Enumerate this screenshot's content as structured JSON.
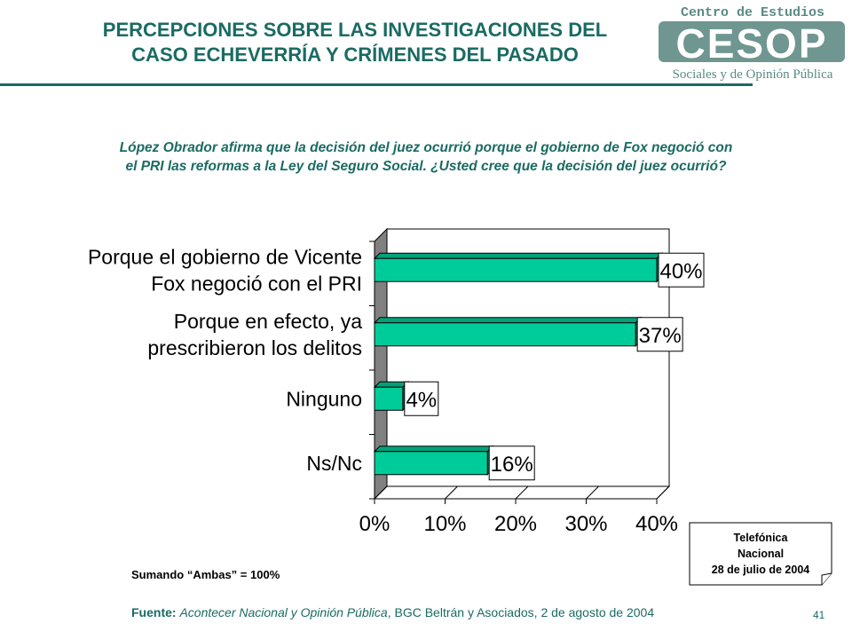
{
  "header": {
    "title_line1": "PERCEPCIONES SOBRE LAS INVESTIGACIONES DEL",
    "title_line2": "CASO ECHEVERRÍA Y CRÍMENES DEL PASADO"
  },
  "logo": {
    "top_text": "Centro de Estudios",
    "big_text": "CESOP",
    "bottom_text": "Sociales y de Opinión Pública"
  },
  "question": {
    "line1": "López Obrador afirma que la decisión del juez ocurrió porque el gobierno de Fox negoció con",
    "line2": "el PRI las reformas a la Ley del Seguro Social. ¿Usted cree que la decisión del juez ocurrió?"
  },
  "chart_data": {
    "type": "bar",
    "orientation": "horizontal",
    "categories": [
      [
        "Porque el gobierno de Vicente",
        "Fox negoció con el PRI"
      ],
      [
        "Porque en efecto, ya",
        "prescribieron los delitos"
      ],
      [
        "Ninguno"
      ],
      [
        "Ns/Nc"
      ]
    ],
    "values": [
      40,
      37,
      4,
      16
    ],
    "data_labels": [
      "40%",
      "37%",
      "4%",
      "16%"
    ],
    "xlim": [
      0,
      40
    ],
    "xticks": [
      "0%",
      "10%",
      "20%",
      "30%",
      "40%"
    ],
    "bar_color": "#00cc99",
    "wall_color": "#808080",
    "grid": false,
    "legend": "none"
  },
  "note": "Sumando “Ambas” = 100%",
  "info_box": {
    "line1": "Telefónica",
    "line2": "Nacional",
    "line3": "28 de julio de 2004"
  },
  "source": {
    "label": "Fuente:",
    "italic": "Acontecer Nacional y Opinión Pública",
    "rest": ", BGC Beltrán y Asociados, 2 de agosto de 2004"
  },
  "page_number": "41",
  "colors": {
    "accent": "#1a6b63",
    "bar": "#00cc99",
    "logo": "#5a8a84"
  }
}
